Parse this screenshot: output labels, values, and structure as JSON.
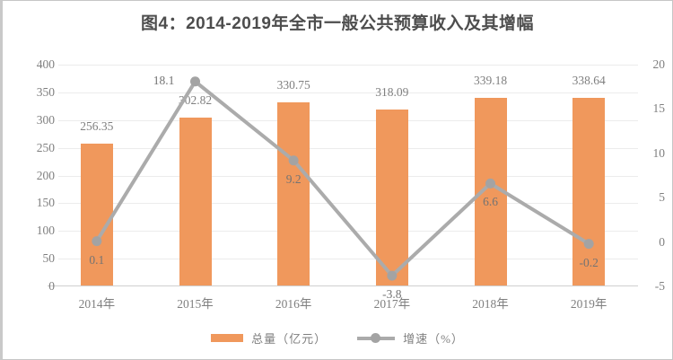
{
  "title": "图4：2014-2019年全市一般公共预算收入及其增幅",
  "chart_data": {
    "type": "bar+line",
    "categories": [
      "2014年",
      "2015年",
      "2016年",
      "2017年",
      "2018年",
      "2019年"
    ],
    "series": [
      {
        "name": "总量（亿元）",
        "type": "bar",
        "axis": "left",
        "color": "#f0985c",
        "values": [
          256.35,
          302.82,
          330.75,
          318.09,
          339.18,
          338.64
        ]
      },
      {
        "name": "增速（%）",
        "type": "line",
        "axis": "right",
        "color": "#ababab",
        "marker_color": "#a3a3a3",
        "values": [
          0.1,
          18.1,
          9.2,
          -3.8,
          6.6,
          -0.2
        ],
        "label_positions": [
          "below",
          "left",
          "below",
          "below",
          "below",
          "below"
        ]
      }
    ],
    "left_axis": {
      "min": 0,
      "max": 400,
      "step": 50,
      "ticks": [
        400,
        350,
        300,
        250,
        200,
        150,
        100,
        50,
        0
      ]
    },
    "right_axis": {
      "min": -5,
      "max": 20,
      "step": 5,
      "ticks": [
        20,
        15,
        10,
        5,
        0,
        -5
      ]
    },
    "grid": true,
    "legend_position": "bottom"
  }
}
